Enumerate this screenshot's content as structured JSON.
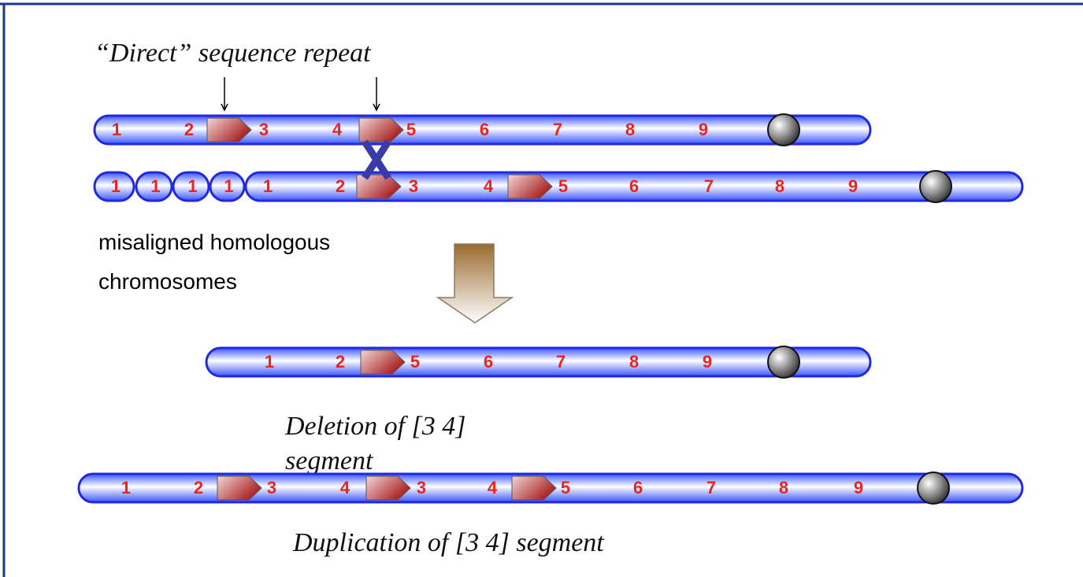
{
  "header": {
    "title": "“Direct” sequence repeat"
  },
  "chromosomes": [
    {
      "labels": [
        "1",
        "2",
        "3",
        "4",
        "5",
        "6",
        "7",
        "8",
        "9"
      ]
    },
    {
      "fragments": [
        "1",
        "1",
        "1",
        "1"
      ],
      "labels": [
        "1",
        "2",
        "3",
        "4",
        "5",
        "6",
        "7",
        "8",
        "9"
      ]
    },
    {
      "labels": [
        "1",
        "2",
        "5",
        "6",
        "7",
        "8",
        "9"
      ]
    },
    {
      "labels": [
        "1",
        "2",
        "3",
        "4",
        "3",
        "4",
        "5",
        "6",
        "7",
        "8",
        "9"
      ]
    }
  ],
  "notes": {
    "misaligned": [
      "misaligned homologous",
      "chromosomes"
    ],
    "deletion": [
      "Deletion of [3 4]",
      "segment"
    ],
    "duplication": "Duplication of [3 4] segment"
  }
}
